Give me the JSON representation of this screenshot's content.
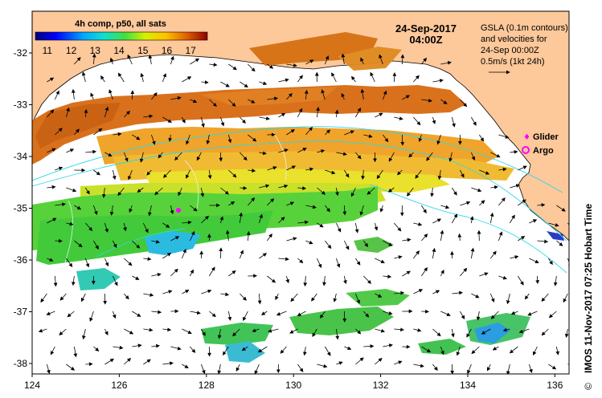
{
  "map": {
    "title_product": "4h comp, p50, all sats",
    "colorbar": {
      "ticks": [
        "11",
        "12",
        "13",
        "14",
        "15",
        "16",
        "17"
      ],
      "min": 10.5,
      "max": 17.7
    },
    "date": "24-Sep-2017",
    "time": "04:00Z",
    "legend_text": {
      "line1": "GSLA (0.1m contours)",
      "line2": "and velocities for",
      "line3": "24-Sep 00:00Z",
      "line4": "0.5m/s (1kt 24h)"
    },
    "markers": {
      "glider_label": "Glider",
      "argo_label": "Argo",
      "glider_color": "#ff00ff",
      "argo_color": "#ff00ff"
    },
    "lat_ticks": [
      "-32",
      "-33",
      "-34",
      "-35",
      "-36",
      "-37",
      "-38"
    ],
    "lon_ticks": [
      "124",
      "126",
      "128",
      "130",
      "132",
      "134",
      "136"
    ],
    "credit": "IMOS 11-Nov-2017 07:25 Hobart Time",
    "copyright": "©",
    "colors": {
      "land": "#fdc89a",
      "ocean": "#ffffff",
      "contour": "#2fd8e8",
      "arrow": "#000000"
    }
  }
}
